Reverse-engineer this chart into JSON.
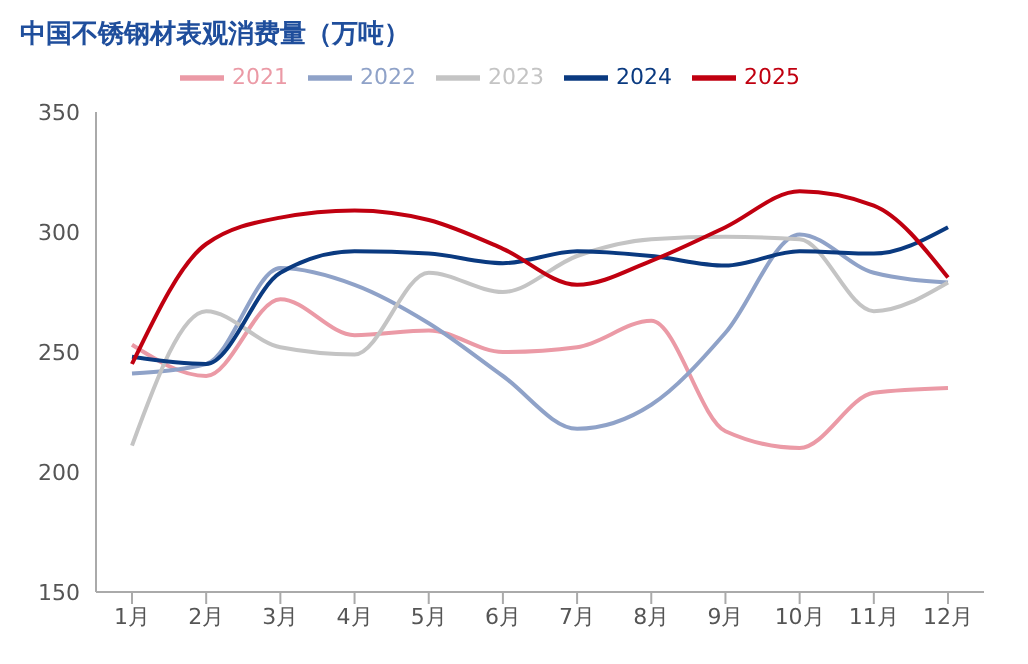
{
  "chart_data": {
    "type": "line",
    "title": "中国不锈钢材表观消费量（万吨）",
    "categories": [
      "1月",
      "2月",
      "3月",
      "4月",
      "5月",
      "6月",
      "7月",
      "8月",
      "9月",
      "10月",
      "11月",
      "12月"
    ],
    "series": [
      {
        "name": "2021",
        "color": "#eb9aa6",
        "values": [
          253,
          240,
          272,
          257,
          259,
          250,
          252,
          263,
          217,
          210,
          233,
          235
        ]
      },
      {
        "name": "2022",
        "color": "#8fa2c8",
        "values": [
          241,
          245,
          285,
          278,
          262,
          240,
          218,
          228,
          258,
          299,
          283,
          279
        ]
      },
      {
        "name": "2023",
        "color": "#c4c4c4",
        "values": [
          211,
          267,
          252,
          249,
          283,
          275,
          290,
          297,
          298,
          297,
          267,
          279
        ]
      },
      {
        "name": "2024",
        "color": "#0a3a80",
        "values": [
          248,
          245,
          283,
          292,
          291,
          287,
          292,
          290,
          286,
          292,
          291,
          302
        ]
      },
      {
        "name": "2025",
        "color": "#c00010",
        "values": [
          245,
          295,
          306,
          309,
          305,
          293,
          278,
          288,
          302,
          317,
          311,
          281
        ]
      }
    ],
    "ylim": [
      150,
      350
    ],
    "yticks": [
      150,
      200,
      250,
      300,
      350
    ],
    "grid": false,
    "legend": "top",
    "marker": "none",
    "line_style": "solid"
  }
}
